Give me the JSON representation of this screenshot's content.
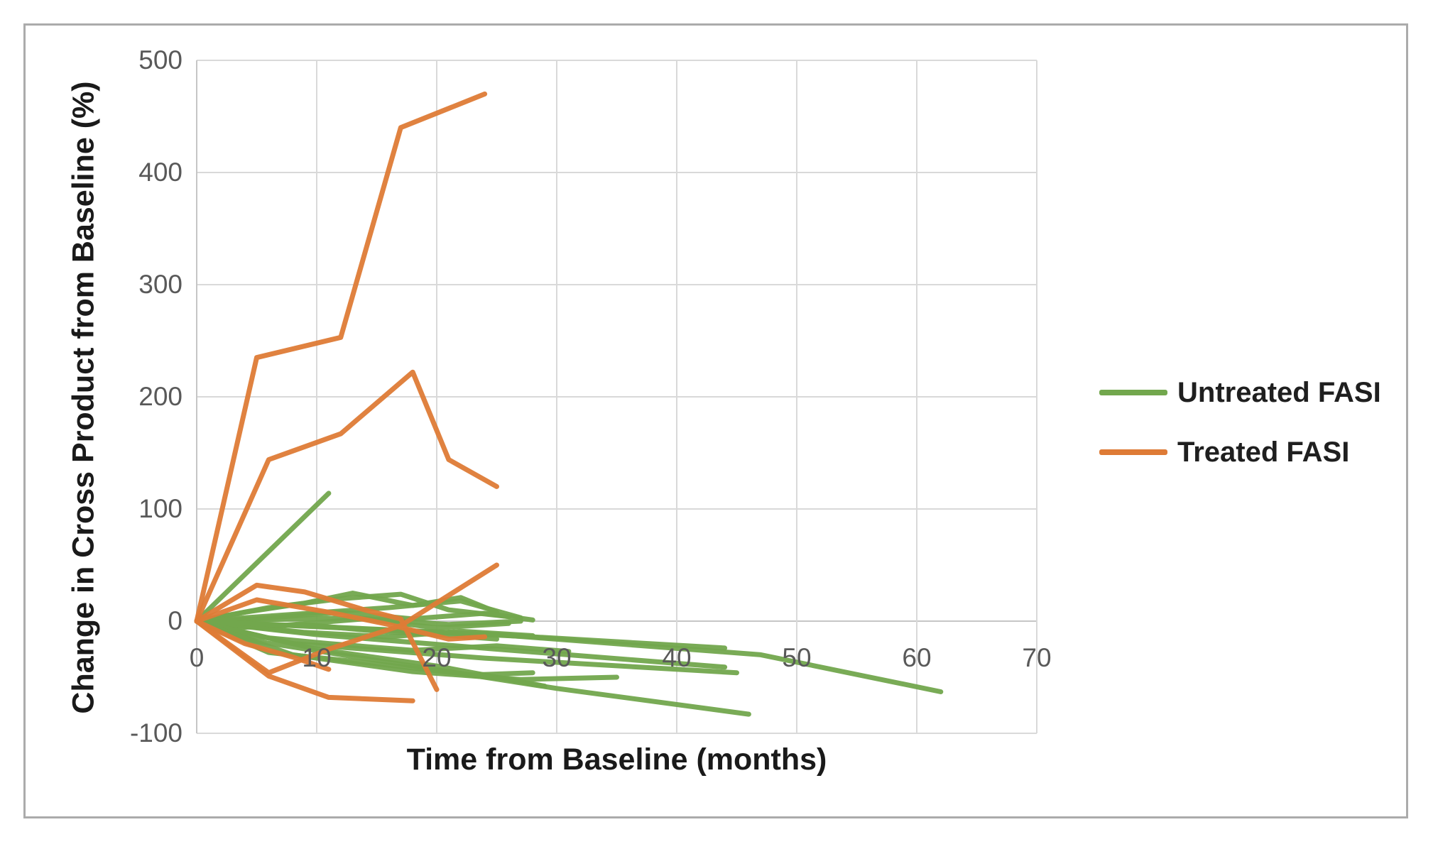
{
  "figure": {
    "background": "#FFFFFF",
    "border_color": "#ABABAB",
    "grid_color": "#D9D9D9",
    "axis_line_color": "#C6C6C6",
    "tick_label_color": "#595959",
    "title_color": "#1A1A1A"
  },
  "chart_data": {
    "type": "line",
    "title": "",
    "xlabel": "Time from Baseline (months)",
    "ylabel": "Change in Cross Product from Baseline (%)",
    "xlim": [
      0,
      70
    ],
    "ylim": [
      -100,
      500
    ],
    "xticks": [
      0,
      10,
      20,
      30,
      40,
      50,
      60,
      70
    ],
    "yticks": [
      500,
      400,
      300,
      200,
      100,
      0,
      -100
    ],
    "grid": true,
    "legend_position": "center-right",
    "series": [
      {
        "name": "Untreated FASI",
        "color": "#72A74D",
        "lines": [
          [
            [
              0,
              0
            ],
            [
              11,
              114
            ]
          ],
          [
            [
              0,
              0
            ],
            [
              4,
              8
            ],
            [
              9,
              16
            ],
            [
              13,
              25
            ],
            [
              18,
              14
            ],
            [
              22,
              21
            ],
            [
              25,
              8
            ]
          ],
          [
            [
              0,
              0
            ],
            [
              6,
              12
            ],
            [
              12,
              20
            ],
            [
              17,
              24
            ],
            [
              21,
              10
            ],
            [
              26,
              4
            ]
          ],
          [
            [
              0,
              0
            ],
            [
              8,
              6
            ],
            [
              16,
              12
            ],
            [
              22,
              18
            ],
            [
              27,
              3
            ]
          ],
          [
            [
              0,
              0
            ],
            [
              5,
              2
            ],
            [
              12,
              8
            ],
            [
              18,
              2
            ],
            [
              24,
              7
            ],
            [
              28,
              1
            ]
          ],
          [
            [
              0,
              0
            ],
            [
              7,
              -4
            ],
            [
              14,
              2
            ],
            [
              20,
              -6
            ],
            [
              26,
              -2
            ]
          ],
          [
            [
              0,
              0
            ],
            [
              13,
              3
            ],
            [
              21,
              -3
            ],
            [
              27,
              0
            ]
          ],
          [
            [
              0,
              0
            ],
            [
              9,
              -10
            ],
            [
              16,
              -14
            ],
            [
              22,
              -9
            ],
            [
              28,
              -13
            ]
          ],
          [
            [
              0,
              0
            ],
            [
              5,
              -14
            ],
            [
              11,
              -20
            ],
            [
              18,
              -26
            ],
            [
              25,
              -22
            ],
            [
              31,
              -27
            ]
          ],
          [
            [
              0,
              0
            ],
            [
              3,
              -6
            ],
            [
              9,
              -3
            ],
            [
              15,
              -9
            ],
            [
              20,
              -12
            ],
            [
              25,
              -16
            ]
          ],
          [
            [
              0,
              0
            ],
            [
              12,
              -6
            ],
            [
              28,
              -14
            ],
            [
              44,
              -24
            ]
          ],
          [
            [
              0,
              0
            ],
            [
              10,
              -12
            ],
            [
              25,
              -25
            ],
            [
              44,
              -41
            ]
          ],
          [
            [
              0,
              0
            ],
            [
              8,
              -20
            ],
            [
              24,
              -33
            ],
            [
              45,
              -46
            ]
          ],
          [
            [
              0,
              0
            ],
            [
              25,
              -12
            ],
            [
              47,
              -30
            ],
            [
              62,
              -63
            ]
          ],
          [
            [
              0,
              0
            ],
            [
              5,
              -18
            ],
            [
              15,
              -35
            ],
            [
              30,
              -60
            ],
            [
              46,
              -83
            ]
          ],
          [
            [
              0,
              0
            ],
            [
              10,
              -25
            ],
            [
              20,
              -40
            ],
            [
              29,
              -58
            ]
          ],
          [
            [
              0,
              0
            ],
            [
              8,
              -30
            ],
            [
              18,
              -45
            ],
            [
              27,
              -52
            ],
            [
              35,
              -50
            ]
          ],
          [
            [
              0,
              0
            ],
            [
              6,
              -28
            ],
            [
              15,
              -38
            ],
            [
              23,
              -48
            ],
            [
              28,
              -46
            ]
          ]
        ]
      },
      {
        "name": "Treated FASI",
        "color": "#DE7B36",
        "lines": [
          [
            [
              0,
              0
            ],
            [
              5,
              235
            ],
            [
              12,
              253
            ],
            [
              17,
              440
            ],
            [
              24,
              470
            ]
          ],
          [
            [
              0,
              0
            ],
            [
              6,
              144
            ],
            [
              12,
              167
            ],
            [
              18,
              222
            ],
            [
              21,
              144
            ],
            [
              25,
              120
            ]
          ],
          [
            [
              0,
              0
            ],
            [
              6,
              -46
            ],
            [
              11,
              -25
            ],
            [
              17,
              -4
            ],
            [
              25,
              50
            ]
          ],
          [
            [
              0,
              0
            ],
            [
              5,
              32
            ],
            [
              9,
              26
            ],
            [
              14,
              10
            ],
            [
              17,
              2
            ],
            [
              20,
              -61
            ]
          ],
          [
            [
              0,
              0
            ],
            [
              5,
              19
            ],
            [
              11,
              8
            ],
            [
              16,
              -3
            ],
            [
              21,
              -16
            ],
            [
              24,
              -14
            ]
          ],
          [
            [
              0,
              0
            ],
            [
              6,
              -49
            ],
            [
              11,
              -68
            ],
            [
              18,
              -71
            ]
          ],
          [
            [
              0,
              0
            ],
            [
              4,
              -20
            ],
            [
              8,
              -32
            ],
            [
              11,
              -43
            ]
          ]
        ]
      }
    ]
  }
}
